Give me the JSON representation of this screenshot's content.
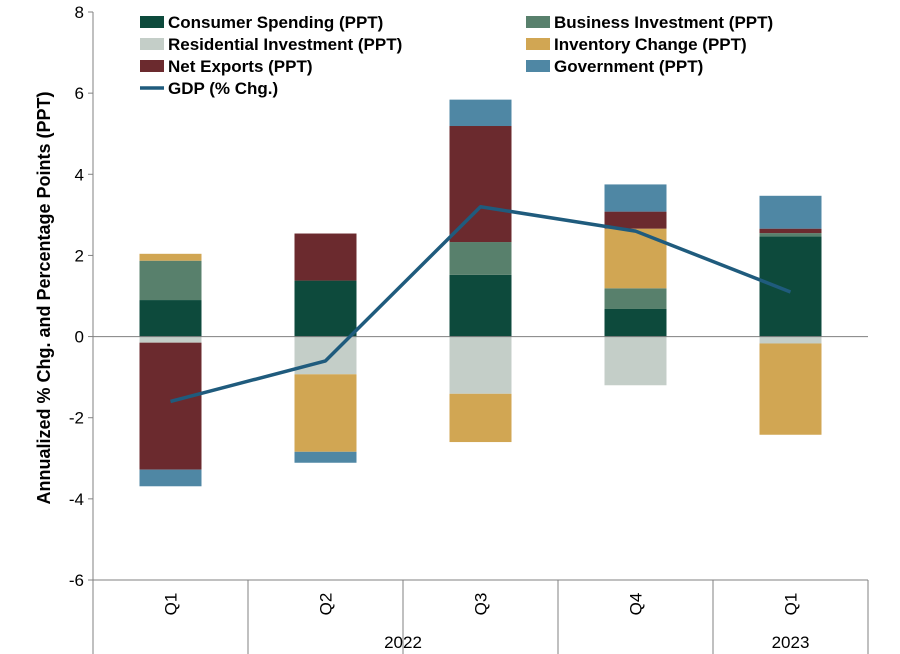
{
  "chart_data": {
    "type": "bar",
    "stacked": true,
    "title": "",
    "xlabel": "",
    "ylabel": "Annualized % Chg. and Percentage Points (PPT)",
    "ylim": [
      -6,
      8
    ],
    "yticks": [
      "8",
      "6",
      "4",
      "2",
      "0",
      "-2",
      "-4",
      "-6"
    ],
    "categories": [
      "Q1",
      "Q2",
      "Q3",
      "Q4",
      "Q1"
    ],
    "year_groups": [
      {
        "label": "2022",
        "span": 4
      },
      {
        "label": "2023",
        "span": 1
      }
    ],
    "grid": false,
    "legend_position": "top",
    "series": [
      {
        "name": "Consumer Spending (PPT)",
        "color": "#0d4a3c",
        "values": [
          0.9,
          1.38,
          1.52,
          0.68,
          2.47
        ]
      },
      {
        "name": "Business Investment (PPT)",
        "color": "#58806c",
        "values": [
          0.97,
          0.0,
          0.81,
          0.51,
          0.08
        ]
      },
      {
        "name": "Residential Investment (PPT)",
        "color": "#c4cec8",
        "values": [
          -0.15,
          -0.93,
          -1.41,
          -1.2,
          -0.17
        ]
      },
      {
        "name": "Inventory Change (PPT)",
        "color": "#d1a653",
        "values": [
          0.17,
          -1.91,
          -1.19,
          1.47,
          -2.25
        ]
      },
      {
        "name": "Net Exports (PPT)",
        "color": "#6b2a2e",
        "values": [
          -3.13,
          1.16,
          2.86,
          0.42,
          0.11
        ]
      },
      {
        "name": "Government (PPT)",
        "color": "#4f87a4",
        "values": [
          -0.41,
          -0.27,
          0.65,
          0.67,
          0.81
        ]
      }
    ],
    "line": {
      "name": "GDP (% Chg.)",
      "color": "#1f5b7d",
      "values": [
        -1.6,
        -0.6,
        3.2,
        2.6,
        1.1
      ]
    }
  }
}
